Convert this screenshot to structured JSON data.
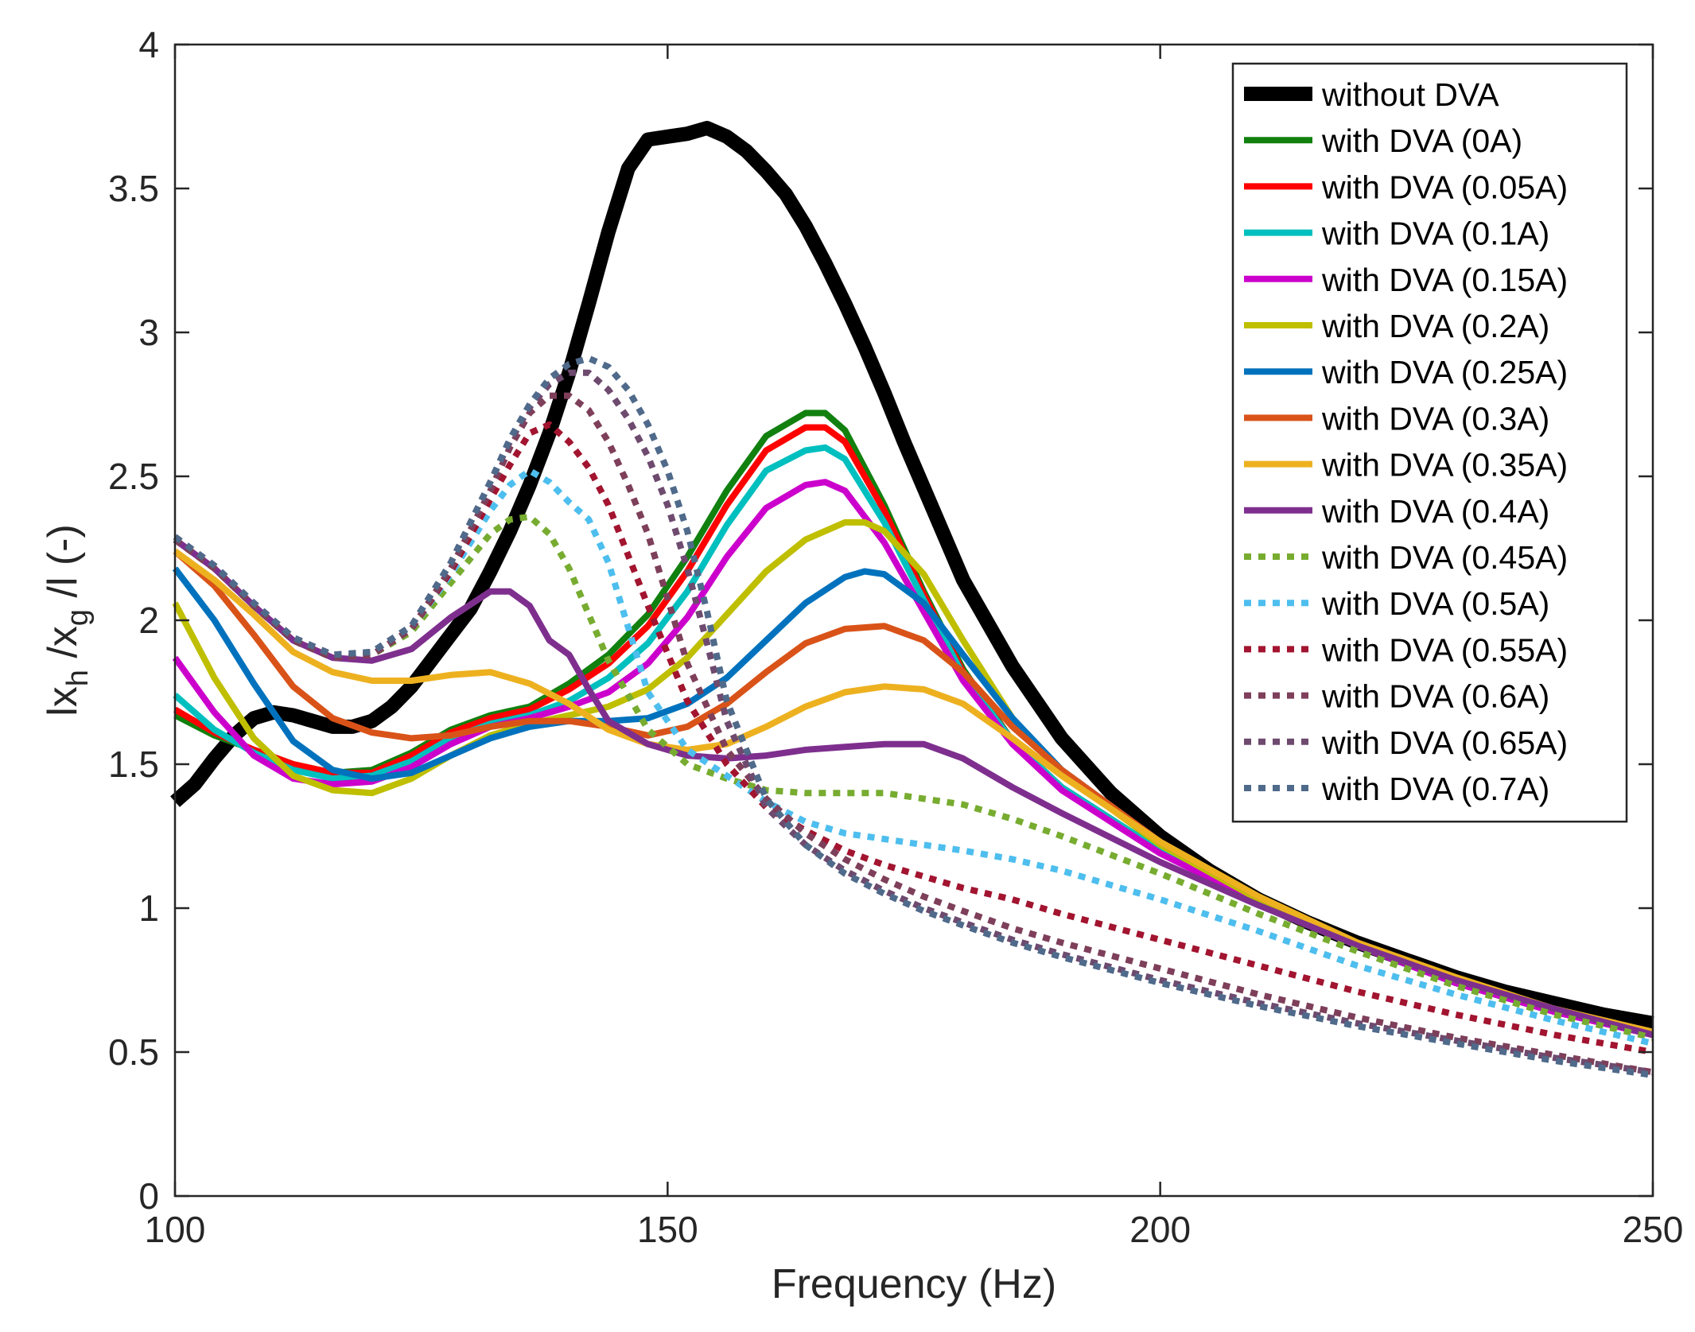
{
  "chart_data": {
    "type": "line",
    "title": "",
    "xlabel": "Frequency (Hz)",
    "ylabel": "|x_h/x_g| (-)",
    "ylabel_parts": {
      "a": "lx",
      "sub1": "h",
      "b": " /x",
      "sub2": "g",
      "c": " /l (-)"
    },
    "xlim": [
      100,
      250
    ],
    "ylim": [
      0,
      4
    ],
    "xticks": [
      100,
      150,
      200,
      250
    ],
    "xtick_labels": [
      "100",
      "150",
      "200",
      "250"
    ],
    "yticks": [
      0,
      0.5,
      1,
      1.5,
      2,
      2.5,
      3,
      3.5,
      4
    ],
    "ytick_labels": [
      "0",
      "0.5",
      "1",
      "1.5",
      "2",
      "2.5",
      "3",
      "3.5",
      "4"
    ],
    "grid": false,
    "legend_position": "top-right",
    "series": [
      {
        "name": "without DVA",
        "color": "#000000",
        "dash": "solid",
        "width": "thick",
        "x": [
          100,
          102,
          104,
          106,
          108,
          110,
          112,
          114,
          116,
          118,
          120,
          122,
          124,
          126,
          128,
          130,
          132,
          134,
          136,
          138,
          140,
          142,
          144,
          146,
          148,
          150,
          152,
          154,
          156,
          158,
          160,
          162,
          164,
          166,
          168,
          170,
          172,
          174,
          176,
          178,
          180,
          185,
          190,
          195,
          200,
          205,
          210,
          215,
          220,
          225,
          230,
          235,
          240,
          245,
          250
        ],
        "y": [
          1.37,
          1.43,
          1.52,
          1.6,
          1.66,
          1.68,
          1.67,
          1.65,
          1.63,
          1.63,
          1.65,
          1.7,
          1.77,
          1.86,
          1.95,
          2.04,
          2.17,
          2.31,
          2.47,
          2.65,
          2.86,
          3.1,
          3.35,
          3.57,
          3.67,
          3.68,
          3.69,
          3.71,
          3.68,
          3.63,
          3.56,
          3.48,
          3.37,
          3.24,
          3.1,
          2.95,
          2.79,
          2.62,
          2.46,
          2.3,
          2.14,
          1.84,
          1.59,
          1.4,
          1.25,
          1.13,
          1.03,
          0.95,
          0.88,
          0.82,
          0.76,
          0.71,
          0.67,
          0.63,
          0.6
        ]
      },
      {
        "name": "with DVA (0A)",
        "color": "#11800f",
        "dash": "solid",
        "width": "normal",
        "x": [
          100,
          104,
          108,
          112,
          116,
          120,
          124,
          128,
          132,
          136,
          140,
          144,
          148,
          152,
          156,
          160,
          164,
          166,
          168,
          172,
          176,
          180,
          185,
          190,
          200,
          210,
          220,
          230,
          240,
          250
        ],
        "y": [
          1.67,
          1.6,
          1.55,
          1.5,
          1.47,
          1.48,
          1.54,
          1.62,
          1.67,
          1.7,
          1.78,
          1.88,
          2.02,
          2.22,
          2.45,
          2.64,
          2.72,
          2.72,
          2.66,
          2.4,
          2.1,
          1.83,
          1.58,
          1.42,
          1.2,
          1.02,
          0.87,
          0.74,
          0.64,
          0.56
        ]
      },
      {
        "name": "with DVA (0.05A)",
        "color": "#ff0000",
        "dash": "solid",
        "width": "normal",
        "x": [
          100,
          104,
          108,
          112,
          116,
          120,
          124,
          128,
          132,
          136,
          140,
          144,
          148,
          152,
          156,
          160,
          164,
          166,
          168,
          172,
          176,
          180,
          185,
          190,
          200,
          210,
          220,
          230,
          240,
          250
        ],
        "y": [
          1.69,
          1.61,
          1.55,
          1.5,
          1.47,
          1.47,
          1.53,
          1.61,
          1.66,
          1.69,
          1.76,
          1.85,
          1.98,
          2.17,
          2.4,
          2.59,
          2.67,
          2.67,
          2.62,
          2.38,
          2.09,
          1.82,
          1.58,
          1.42,
          1.2,
          1.02,
          0.87,
          0.74,
          0.64,
          0.56
        ]
      },
      {
        "name": "with DVA (0.1A)",
        "color": "#00bfbf",
        "dash": "solid",
        "width": "normal",
        "x": [
          100,
          104,
          108,
          112,
          116,
          120,
          124,
          128,
          132,
          136,
          140,
          144,
          148,
          152,
          156,
          160,
          164,
          166,
          168,
          172,
          176,
          180,
          185,
          190,
          200,
          210,
          220,
          230,
          240,
          250
        ],
        "y": [
          1.74,
          1.62,
          1.54,
          1.48,
          1.45,
          1.46,
          1.51,
          1.59,
          1.64,
          1.67,
          1.72,
          1.8,
          1.92,
          2.1,
          2.33,
          2.52,
          2.59,
          2.6,
          2.56,
          2.34,
          2.07,
          1.81,
          1.58,
          1.42,
          1.2,
          1.02,
          0.87,
          0.74,
          0.64,
          0.56
        ]
      },
      {
        "name": "with DVA (0.15A)",
        "color": "#cc00cc",
        "dash": "solid",
        "width": "normal",
        "x": [
          100,
          104,
          108,
          112,
          116,
          120,
          124,
          128,
          132,
          136,
          140,
          144,
          148,
          152,
          156,
          160,
          164,
          166,
          168,
          172,
          176,
          180,
          185,
          190,
          200,
          210,
          220,
          230,
          240,
          250
        ],
        "y": [
          1.87,
          1.68,
          1.53,
          1.45,
          1.43,
          1.44,
          1.49,
          1.57,
          1.63,
          1.66,
          1.7,
          1.75,
          1.85,
          2.01,
          2.22,
          2.39,
          2.47,
          2.48,
          2.45,
          2.27,
          2.03,
          1.79,
          1.57,
          1.41,
          1.19,
          1.02,
          0.87,
          0.74,
          0.64,
          0.56
        ]
      },
      {
        "name": "with DVA (0.2A)",
        "color": "#bfbf00",
        "dash": "solid",
        "width": "normal",
        "x": [
          100,
          104,
          108,
          112,
          116,
          120,
          124,
          128,
          132,
          136,
          140,
          144,
          148,
          152,
          156,
          160,
          164,
          168,
          170,
          172,
          176,
          180,
          185,
          190,
          200,
          210,
          220,
          230,
          240,
          250
        ],
        "y": [
          2.06,
          1.8,
          1.59,
          1.46,
          1.41,
          1.4,
          1.45,
          1.53,
          1.6,
          1.64,
          1.67,
          1.7,
          1.76,
          1.87,
          2.02,
          2.17,
          2.28,
          2.34,
          2.34,
          2.31,
          2.16,
          1.93,
          1.66,
          1.47,
          1.22,
          1.03,
          0.88,
          0.75,
          0.65,
          0.57
        ]
      },
      {
        "name": "with DVA (0.25A)",
        "color": "#0072bd",
        "dash": "solid",
        "width": "normal",
        "x": [
          100,
          104,
          108,
          112,
          116,
          120,
          124,
          128,
          132,
          136,
          140,
          144,
          148,
          152,
          156,
          160,
          164,
          168,
          170,
          172,
          176,
          180,
          185,
          190,
          200,
          210,
          220,
          230,
          240,
          250
        ],
        "y": [
          2.18,
          2.0,
          1.78,
          1.58,
          1.48,
          1.45,
          1.47,
          1.53,
          1.59,
          1.63,
          1.65,
          1.65,
          1.66,
          1.71,
          1.8,
          1.93,
          2.06,
          2.15,
          2.17,
          2.16,
          2.06,
          1.88,
          1.66,
          1.48,
          1.23,
          1.04,
          0.88,
          0.75,
          0.65,
          0.57
        ]
      },
      {
        "name": "with DVA (0.3A)",
        "color": "#d95319",
        "dash": "solid",
        "width": "normal",
        "x": [
          100,
          104,
          108,
          112,
          116,
          120,
          124,
          128,
          132,
          136,
          140,
          144,
          148,
          152,
          156,
          160,
          164,
          168,
          172,
          176,
          180,
          185,
          190,
          200,
          210,
          220,
          230,
          240,
          250
        ],
        "y": [
          2.24,
          2.12,
          1.95,
          1.77,
          1.66,
          1.61,
          1.59,
          1.6,
          1.63,
          1.65,
          1.65,
          1.63,
          1.6,
          1.63,
          1.71,
          1.82,
          1.92,
          1.97,
          1.98,
          1.93,
          1.82,
          1.63,
          1.48,
          1.23,
          1.04,
          0.88,
          0.75,
          0.65,
          0.57
        ]
      },
      {
        "name": "with DVA (0.35A)",
        "color": "#edb120",
        "dash": "solid",
        "width": "normal",
        "x": [
          100,
          104,
          108,
          112,
          116,
          120,
          124,
          128,
          132,
          136,
          140,
          144,
          148,
          152,
          156,
          160,
          164,
          168,
          172,
          176,
          180,
          185,
          190,
          200,
          210,
          220,
          230,
          240,
          250
        ],
        "y": [
          2.24,
          2.14,
          2.02,
          1.89,
          1.82,
          1.79,
          1.79,
          1.81,
          1.82,
          1.78,
          1.71,
          1.62,
          1.57,
          1.55,
          1.57,
          1.63,
          1.7,
          1.75,
          1.77,
          1.76,
          1.71,
          1.59,
          1.46,
          1.23,
          1.04,
          0.88,
          0.76,
          0.65,
          0.57
        ]
      },
      {
        "name": "with DVA (0.4A)",
        "color": "#7e2f8e",
        "dash": "solid",
        "width": "normal",
        "x": [
          100,
          104,
          108,
          112,
          116,
          120,
          124,
          128,
          132,
          134,
          136,
          138,
          140,
          142,
          144,
          148,
          152,
          156,
          160,
          164,
          168,
          172,
          176,
          180,
          185,
          190,
          200,
          210,
          220,
          230,
          240,
          250
        ],
        "y": [
          2.28,
          2.18,
          2.05,
          1.93,
          1.87,
          1.86,
          1.9,
          2.01,
          2.1,
          2.1,
          2.05,
          1.93,
          1.88,
          1.76,
          1.65,
          1.57,
          1.53,
          1.52,
          1.53,
          1.55,
          1.56,
          1.57,
          1.57,
          1.52,
          1.42,
          1.33,
          1.16,
          1.01,
          0.87,
          0.75,
          0.65,
          0.56
        ]
      },
      {
        "name": "with DVA (0.45A)",
        "color": "#77ac30",
        "dash": "dotted",
        "width": "normal",
        "x": [
          100,
          104,
          108,
          112,
          116,
          120,
          124,
          128,
          132,
          134,
          136,
          138,
          140,
          142,
          144,
          148,
          152,
          156,
          160,
          164,
          168,
          172,
          176,
          180,
          185,
          190,
          200,
          210,
          220,
          230,
          240,
          250
        ],
        "y": [
          2.28,
          2.18,
          2.05,
          1.93,
          1.87,
          1.88,
          1.96,
          2.13,
          2.3,
          2.35,
          2.36,
          2.3,
          2.18,
          2.02,
          1.86,
          1.62,
          1.5,
          1.45,
          1.41,
          1.4,
          1.4,
          1.4,
          1.38,
          1.36,
          1.31,
          1.25,
          1.12,
          0.98,
          0.85,
          0.73,
          0.63,
          0.55
        ]
      },
      {
        "name": "with DVA (0.5A)",
        "color": "#4dbeee",
        "dash": "dotted",
        "width": "normal",
        "x": [
          100,
          104,
          108,
          112,
          116,
          120,
          124,
          128,
          132,
          134,
          136,
          138,
          140,
          142,
          144,
          148,
          152,
          156,
          160,
          164,
          168,
          172,
          176,
          180,
          185,
          190,
          200,
          210,
          220,
          230,
          240,
          250
        ],
        "y": [
          2.28,
          2.18,
          2.05,
          1.93,
          1.87,
          1.88,
          1.97,
          2.16,
          2.38,
          2.47,
          2.52,
          2.48,
          2.41,
          2.35,
          2.2,
          1.75,
          1.55,
          1.46,
          1.37,
          1.3,
          1.26,
          1.24,
          1.22,
          1.2,
          1.17,
          1.13,
          1.03,
          0.92,
          0.8,
          0.7,
          0.61,
          0.53
        ]
      },
      {
        "name": "with DVA (0.55A)",
        "color": "#a2142f",
        "dash": "dotted",
        "width": "normal",
        "x": [
          100,
          104,
          108,
          112,
          116,
          120,
          124,
          128,
          132,
          134,
          136,
          138,
          140,
          142,
          144,
          148,
          152,
          156,
          160,
          164,
          168,
          172,
          176,
          180,
          185,
          190,
          200,
          210,
          220,
          230,
          240,
          250
        ],
        "y": [
          2.28,
          2.18,
          2.05,
          1.93,
          1.87,
          1.88,
          1.97,
          2.17,
          2.42,
          2.54,
          2.65,
          2.68,
          2.62,
          2.53,
          2.4,
          2.05,
          1.72,
          1.5,
          1.35,
          1.27,
          1.2,
          1.15,
          1.11,
          1.07,
          1.03,
          0.98,
          0.89,
          0.8,
          0.71,
          0.63,
          0.56,
          0.5
        ]
      },
      {
        "name": "with DVA (0.6A)",
        "color": "#7e3f5a",
        "dash": "dotted",
        "width": "normal",
        "x": [
          100,
          104,
          108,
          112,
          116,
          120,
          124,
          128,
          132,
          134,
          136,
          138,
          140,
          142,
          144,
          146,
          148,
          152,
          156,
          160,
          164,
          168,
          172,
          176,
          180,
          185,
          190,
          200,
          210,
          220,
          230,
          240,
          250
        ],
        "y": [
          2.28,
          2.18,
          2.05,
          1.93,
          1.87,
          1.88,
          1.97,
          2.18,
          2.45,
          2.6,
          2.72,
          2.78,
          2.78,
          2.73,
          2.62,
          2.47,
          2.3,
          1.85,
          1.55,
          1.38,
          1.26,
          1.17,
          1.1,
          1.04,
          0.99,
          0.93,
          0.88,
          0.79,
          0.7,
          0.62,
          0.55,
          0.49,
          0.43
        ]
      },
      {
        "name": "with DVA (0.65A)",
        "color": "#6e4a6e",
        "dash": "dotted",
        "width": "normal",
        "x": [
          100,
          104,
          108,
          112,
          116,
          120,
          124,
          128,
          132,
          134,
          136,
          138,
          140,
          142,
          144,
          146,
          148,
          150,
          152,
          154,
          156,
          160,
          164,
          168,
          172,
          176,
          180,
          185,
          190,
          200,
          210,
          220,
          230,
          240,
          250
        ],
        "y": [
          2.29,
          2.19,
          2.06,
          1.94,
          1.88,
          1.89,
          1.98,
          2.2,
          2.48,
          2.62,
          2.74,
          2.82,
          2.86,
          2.86,
          2.8,
          2.7,
          2.57,
          2.4,
          2.18,
          1.92,
          1.65,
          1.35,
          1.22,
          1.13,
          1.06,
          1.0,
          0.95,
          0.89,
          0.84,
          0.75,
          0.67,
          0.6,
          0.54,
          0.48,
          0.43
        ]
      },
      {
        "name": "with DVA (0.7A)",
        "color": "#4f6a8a",
        "dash": "dotted",
        "width": "normal",
        "x": [
          100,
          104,
          108,
          112,
          116,
          120,
          124,
          128,
          132,
          134,
          136,
          138,
          140,
          142,
          144,
          146,
          148,
          150,
          152,
          154,
          156,
          160,
          164,
          168,
          172,
          176,
          180,
          185,
          190,
          200,
          210,
          220,
          230,
          240,
          250
        ],
        "y": [
          2.29,
          2.19,
          2.06,
          1.94,
          1.88,
          1.89,
          1.98,
          2.2,
          2.48,
          2.63,
          2.75,
          2.84,
          2.89,
          2.91,
          2.88,
          2.8,
          2.68,
          2.52,
          2.31,
          2.03,
          1.72,
          1.38,
          1.22,
          1.12,
          1.05,
          0.99,
          0.94,
          0.88,
          0.83,
          0.74,
          0.66,
          0.59,
          0.53,
          0.47,
          0.42
        ]
      }
    ]
  }
}
